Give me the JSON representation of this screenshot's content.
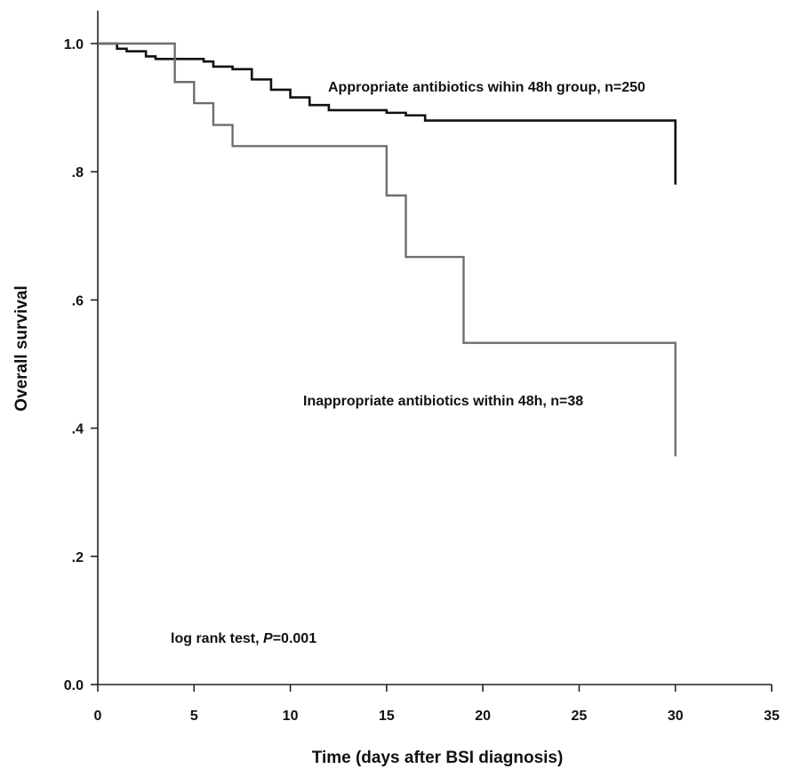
{
  "chart_data": {
    "type": "line",
    "step": true,
    "xlabel": "Time (days after BSI diagnosis)",
    "ylabel": "Overall survival",
    "xlim": [
      0,
      35
    ],
    "ylim": [
      0,
      1.0
    ],
    "x_ticks": [
      0,
      5,
      10,
      15,
      20,
      25,
      30,
      35
    ],
    "x_tick_labels": [
      "0",
      "5",
      "10",
      "15",
      "20",
      "25",
      "30",
      "35"
    ],
    "y_ticks": [
      0,
      0.2,
      0.4,
      0.6,
      0.8,
      1.0
    ],
    "y_tick_labels": [
      "0.0",
      ".2",
      ".4",
      ".6",
      ".8",
      "1.0"
    ],
    "grid": false,
    "series": [
      {
        "name": "Appropriate antibiotics wihin 48h group, n=250",
        "color": "#111111",
        "x": [
          0,
          1,
          1.5,
          2.5,
          3,
          4,
          5,
          5.5,
          6,
          7,
          8,
          9,
          10,
          11,
          12,
          13,
          14,
          15,
          16,
          17,
          18,
          19,
          20,
          21,
          22,
          23,
          24,
          25,
          26,
          27,
          28,
          29,
          30,
          30
        ],
        "y": [
          1.0,
          0.992,
          0.988,
          0.98,
          0.976,
          0.976,
          0.976,
          0.972,
          0.964,
          0.96,
          0.944,
          0.928,
          0.916,
          0.904,
          0.896,
          0.896,
          0.896,
          0.892,
          0.888,
          0.88,
          0.88,
          0.88,
          0.88,
          0.88,
          0.88,
          0.88,
          0.88,
          0.88,
          0.88,
          0.88,
          0.88,
          0.88,
          0.88,
          0.78
        ]
      },
      {
        "name": "Inappropriate antibiotics within 48h, n=38",
        "color": "#6e6e6e",
        "x": [
          0,
          4,
          5,
          6,
          7,
          15,
          16,
          19,
          30,
          30
        ],
        "y": [
          1.0,
          0.94,
          0.907,
          0.873,
          0.84,
          0.763,
          0.667,
          0.533,
          0.533,
          0.356
        ]
      }
    ],
    "annotations": [
      {
        "text": "Appropriate antibiotics wihin 48h group, n=250"
      },
      {
        "text": "Inappropriate antibiotics within 48h, n=38"
      },
      {
        "prefix": "log rank test, ",
        "italic": "P",
        "suffix": "=0.001"
      }
    ]
  }
}
